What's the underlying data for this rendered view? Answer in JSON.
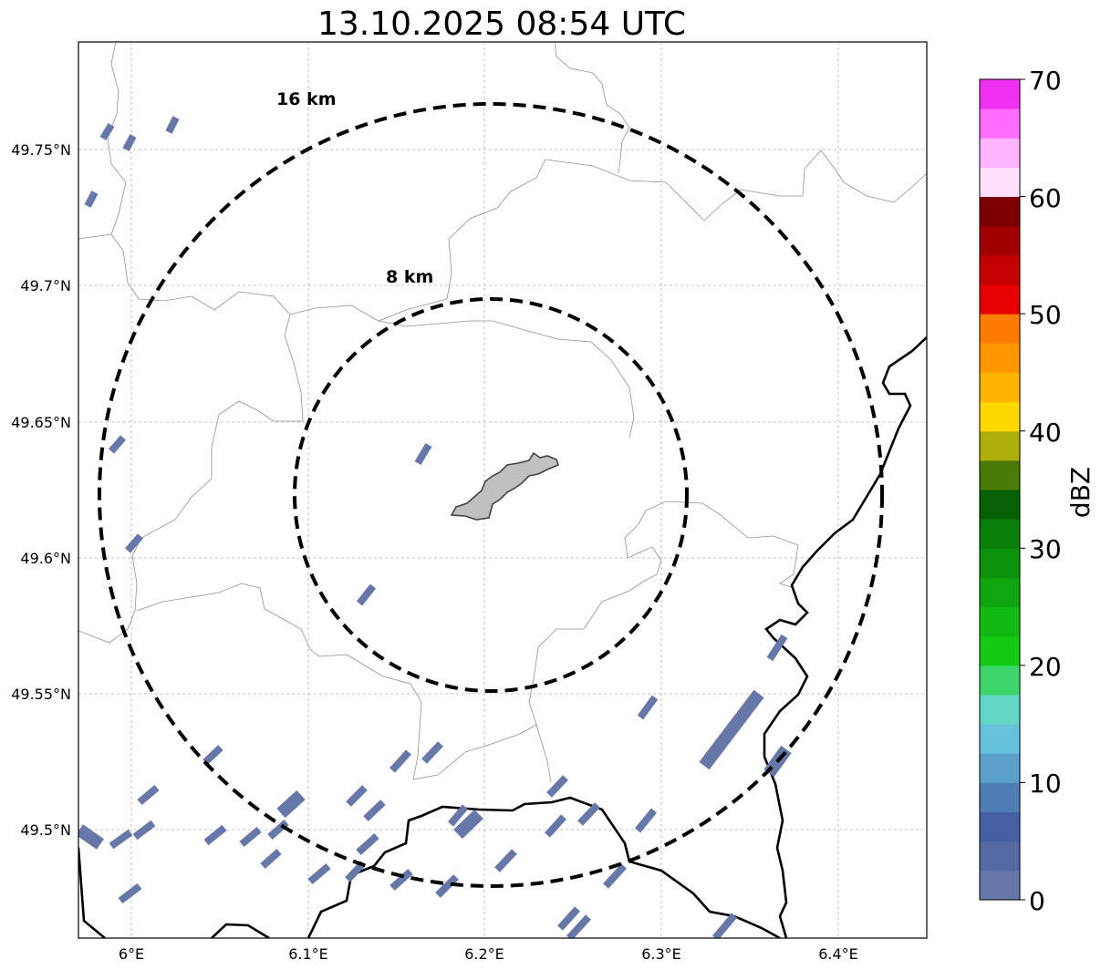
{
  "title": "13.10.2025 08:54 UTC",
  "map": {
    "lon_ticks": [
      "6°E",
      "6.1°E",
      "6.2°E",
      "6.3°E",
      "6.4°E"
    ],
    "lat_ticks": [
      "49.75°N",
      "49.7°N",
      "49.65°N",
      "49.6°N",
      "49.55°N",
      "49.5°N"
    ],
    "rings": [
      {
        "label": "16 km"
      },
      {
        "label": "8 km"
      }
    ],
    "echo_color": "#6778a8",
    "city_fill": "#c0c0c0"
  },
  "colorbar": {
    "label": "dBZ",
    "ticks": [
      "0",
      "10",
      "20",
      "30",
      "40",
      "50",
      "60",
      "70"
    ],
    "colors": [
      "#6778a8",
      "#566aa2",
      "#4661a3",
      "#4e7db4",
      "#5aa0c8",
      "#66c2dc",
      "#62d6c4",
      "#3dd66b",
      "#14c914",
      "#12b912",
      "#0fa610",
      "#0d920d",
      "#0a7f0a",
      "#066006",
      "#4a7b07",
      "#adb00a",
      "#ffd800",
      "#ffb400",
      "#ff9800",
      "#ff7c00",
      "#e60000",
      "#c40000",
      "#a00000",
      "#7c0000",
      "#ffe0ff",
      "#ffb4ff",
      "#ff6cff",
      "#f030f0"
    ]
  }
}
